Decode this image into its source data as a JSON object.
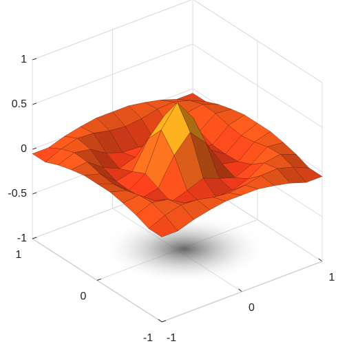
{
  "chart_data": {
    "type": "surface",
    "x": [
      -1,
      -0.8,
      -0.6,
      -0.4,
      -0.2,
      0,
      0.2,
      0.4,
      0.6,
      0.8,
      1
    ],
    "y": [
      -1,
      -0.8,
      -0.6,
      -0.4,
      -0.2,
      0,
      0.2,
      0.4,
      0.6,
      0.8,
      1
    ],
    "z": [
      [
        -0.05,
        -0.05,
        0.01,
        0.05,
        0.08,
        0.08,
        0.08,
        0.05,
        0.01,
        -0.05,
        -0.05
      ],
      [
        -0.05,
        0.03,
        0.08,
        0.07,
        0.03,
        0.01,
        0.03,
        0.07,
        0.08,
        0.03,
        -0.05
      ],
      [
        0.01,
        0.08,
        0.05,
        -0.06,
        -0.12,
        -0.13,
        -0.12,
        -0.06,
        0.05,
        0.08,
        0.01
      ],
      [
        0.05,
        0.07,
        -0.06,
        -0.14,
        -0.08,
        -0.01,
        -0.08,
        -0.14,
        -0.06,
        0.07,
        0.05
      ],
      [
        0.08,
        0.03,
        -0.12,
        -0.08,
        0.22,
        0.41,
        0.22,
        -0.08,
        -0.12,
        0.03,
        0.08
      ],
      [
        0.08,
        0.01,
        -0.13,
        -0.01,
        0.41,
        0.65,
        0.41,
        -0.01,
        -0.13,
        0.01,
        0.08
      ],
      [
        0.08,
        0.03,
        -0.12,
        -0.08,
        0.22,
        0.41,
        0.22,
        -0.08,
        -0.12,
        0.03,
        0.08
      ],
      [
        0.05,
        0.07,
        -0.06,
        -0.14,
        -0.08,
        -0.01,
        -0.08,
        -0.14,
        -0.06,
        0.07,
        0.05
      ],
      [
        0.01,
        0.08,
        0.05,
        -0.06,
        -0.12,
        -0.13,
        -0.12,
        -0.06,
        0.05,
        0.08,
        0.01
      ],
      [
        -0.05,
        0.03,
        0.08,
        0.07,
        0.03,
        0.01,
        0.03,
        0.07,
        0.08,
        0.03,
        -0.05
      ],
      [
        -0.05,
        -0.05,
        0.01,
        0.05,
        0.08,
        0.08,
        0.08,
        0.05,
        0.01,
        -0.05,
        -0.05
      ]
    ],
    "xlim": [
      -1,
      1
    ],
    "ylim": [
      -1,
      1
    ],
    "zlim": [
      -1,
      1
    ],
    "xticks": [
      -1,
      0,
      1
    ],
    "yticks": [
      -1,
      0,
      1
    ],
    "zticks": [
      -1,
      -0.5,
      0,
      0.5,
      1
    ],
    "colormap": [
      "#e8321a",
      "#f7c51c"
    ],
    "grid": true
  }
}
